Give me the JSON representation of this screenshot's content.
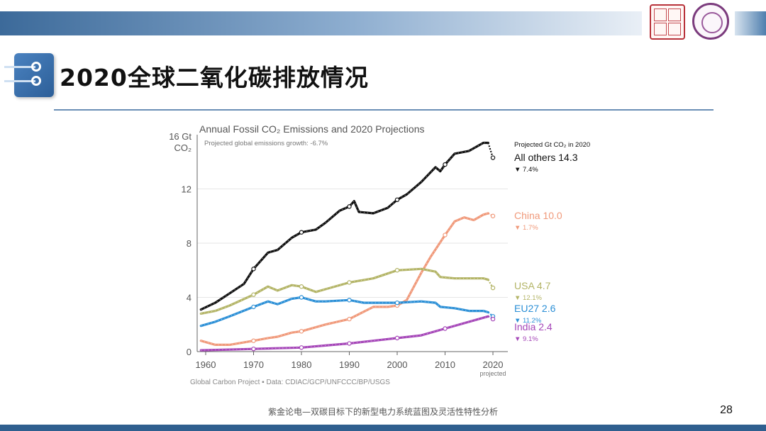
{
  "slide": {
    "title": "2020全球二氧化碳排放情况",
    "footer": "紫金论电—双碳目标下的新型电力系统蓝图及灵活性特性分析",
    "page_number": "28"
  },
  "colors": {
    "header_bar": "#3c6a9a",
    "title_rule": "#6a8fb5",
    "bottom_bar": "#2f5f8f"
  },
  "chart_data": {
    "type": "line",
    "title": "Annual Fossil CO₂ Emissions and 2020 Projections",
    "subtitle": "Projected global emissions growth: -6.7%",
    "ylabel_line1": "16 Gt",
    "ylabel_line2": "CO₂",
    "ylim": [
      0,
      16
    ],
    "xlim": [
      1960,
      2020
    ],
    "y_ticks": [
      "0",
      "4",
      "8",
      "12"
    ],
    "x_ticks": [
      "1960",
      "1970",
      "1980",
      "1990",
      "2000",
      "2010",
      "2020"
    ],
    "x_tick_note": "projected",
    "grid": true,
    "legend_heading": "Projected Gt CO₂ in 2020",
    "credit": "Global Carbon Project  ▪  Data: CDIAC/GCP/UNFCCC/BP/USGS",
    "series": [
      {
        "name": "All others",
        "label": "All others 14.3",
        "change": "▼ 7.4%",
        "color": "#111111",
        "x": [
          1959,
          1962,
          1965,
          1968,
          1970,
          1973,
          1975,
          1978,
          1980,
          1983,
          1985,
          1988,
          1990,
          1991,
          1992,
          1995,
          1998,
          2000,
          2002,
          2005,
          2008,
          2009,
          2010,
          2012,
          2015,
          2018,
          2019,
          2020
        ],
        "y": [
          3.1,
          3.6,
          4.3,
          5.0,
          6.1,
          7.3,
          7.5,
          8.4,
          8.8,
          9.0,
          9.5,
          10.4,
          10.7,
          11.1,
          10.3,
          10.2,
          10.6,
          11.2,
          11.6,
          12.5,
          13.6,
          13.3,
          13.8,
          14.6,
          14.8,
          15.4,
          15.4,
          14.3
        ]
      },
      {
        "name": "China",
        "label": "China 10.0",
        "change": "▼ 1.7%",
        "color": "#f0997a",
        "x": [
          1959,
          1962,
          1965,
          1970,
          1973,
          1975,
          1978,
          1980,
          1985,
          1990,
          1995,
          1998,
          2000,
          2002,
          2005,
          2007,
          2010,
          2012,
          2014,
          2016,
          2018,
          2019,
          2020
        ],
        "y": [
          0.8,
          0.5,
          0.5,
          0.8,
          1.0,
          1.1,
          1.4,
          1.5,
          2.0,
          2.4,
          3.3,
          3.3,
          3.4,
          3.8,
          5.8,
          7.0,
          8.6,
          9.6,
          9.9,
          9.7,
          10.1,
          10.2,
          10.0
        ]
      },
      {
        "name": "USA",
        "label": "USA 4.7",
        "change": "▼ 12.1%",
        "color": "#b3b466",
        "x": [
          1959,
          1962,
          1965,
          1970,
          1973,
          1975,
          1978,
          1980,
          1983,
          1985,
          1990,
          1995,
          2000,
          2005,
          2008,
          2009,
          2012,
          2015,
          2018,
          2019,
          2020
        ],
        "y": [
          2.8,
          3.0,
          3.4,
          4.2,
          4.8,
          4.5,
          4.9,
          4.8,
          4.4,
          4.6,
          5.1,
          5.4,
          6.0,
          6.1,
          5.9,
          5.5,
          5.4,
          5.4,
          5.4,
          5.3,
          4.7
        ]
      },
      {
        "name": "EU27",
        "label": "EU27 2.6",
        "change": "▼ 11.2%",
        "color": "#2b8fd6",
        "x": [
          1959,
          1962,
          1965,
          1970,
          1973,
          1975,
          1978,
          1980,
          1983,
          1985,
          1990,
          1993,
          1995,
          2000,
          2005,
          2008,
          2009,
          2012,
          2015,
          2018,
          2019,
          2020
        ],
        "y": [
          1.9,
          2.2,
          2.6,
          3.3,
          3.7,
          3.5,
          3.9,
          4.0,
          3.7,
          3.7,
          3.8,
          3.6,
          3.6,
          3.6,
          3.7,
          3.6,
          3.3,
          3.2,
          3.0,
          3.0,
          2.9,
          2.6
        ]
      },
      {
        "name": "India",
        "label": "India 2.4",
        "change": "▼ 9.1%",
        "color": "#a546b8",
        "x": [
          1959,
          1965,
          1970,
          1975,
          1980,
          1985,
          1990,
          1995,
          2000,
          2005,
          2010,
          2015,
          2019,
          2020
        ],
        "y": [
          0.1,
          0.15,
          0.2,
          0.25,
          0.3,
          0.45,
          0.6,
          0.8,
          1.0,
          1.2,
          1.7,
          2.2,
          2.6,
          2.4
        ]
      }
    ]
  }
}
